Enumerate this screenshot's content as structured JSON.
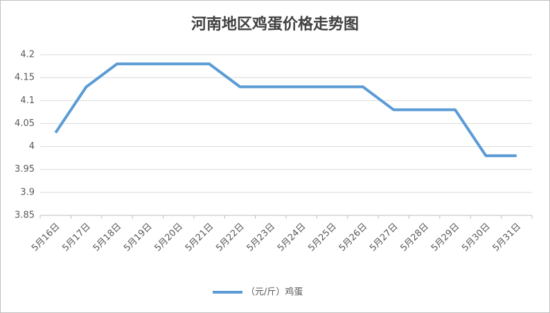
{
  "chart_data": {
    "type": "line",
    "title": "河南地区鸡蛋价格走势图",
    "categories": [
      "5月16日",
      "5月17日",
      "5月18日",
      "5月19日",
      "5月20日",
      "5月21日",
      "5月22日",
      "5月23日",
      "5月24日",
      "5月25日",
      "5月26日",
      "5月27日",
      "5月28日",
      "5月29日",
      "5月30日",
      "5月31日"
    ],
    "series": [
      {
        "name": "（元/斤）鸡蛋",
        "color": "#5b9bd5",
        "values": [
          4.03,
          4.13,
          4.18,
          4.18,
          4.18,
          4.18,
          4.13,
          4.13,
          4.13,
          4.13,
          4.13,
          4.08,
          4.08,
          4.08,
          3.98,
          3.98
        ]
      }
    ],
    "ylim": [
      3.85,
      4.2
    ],
    "yticks": [
      3.85,
      3.9,
      3.95,
      4,
      4.05,
      4.1,
      4.15,
      4.2
    ],
    "grid": true,
    "legend": "bottom"
  }
}
